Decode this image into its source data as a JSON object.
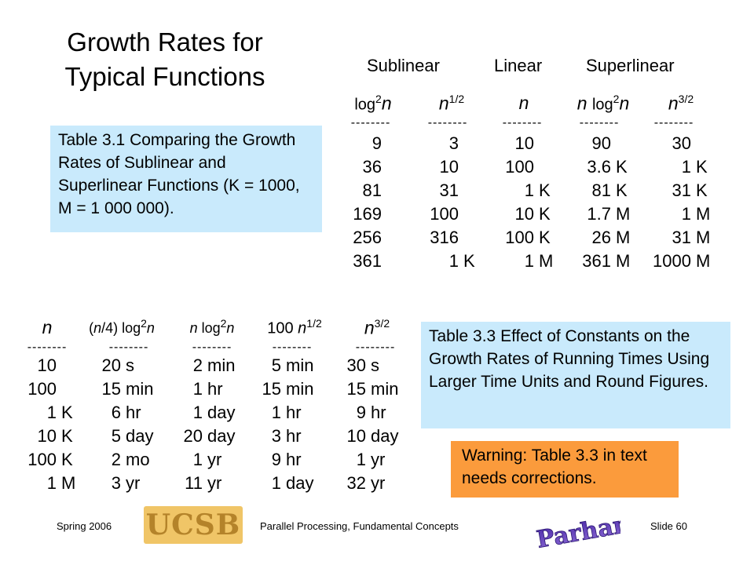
{
  "title": "Growth Rates for Typical Functions",
  "groups": {
    "sublinear": "Sublinear",
    "linear": "Linear",
    "superlinear": "Superlinear"
  },
  "table1": {
    "dash": "--------",
    "header_parts": [
      {
        "pre": "log",
        "sup": "2",
        "var": "n",
        "post": ""
      },
      {
        "pre": "",
        "var": "n",
        "sup": "1/2",
        "post": ""
      },
      {
        "pre": "",
        "var": "n",
        "sup": "",
        "post": ""
      },
      {
        "pre": "n log",
        "sup": "2",
        "var": "n",
        "post": ""
      },
      {
        "pre": "",
        "var": "n",
        "sup": "3/2",
        "post": ""
      }
    ],
    "rows": [
      [
        [
          "9",
          ""
        ],
        [
          "3",
          ""
        ],
        [
          "10",
          ""
        ],
        [
          "90",
          ""
        ],
        [
          "30",
          ""
        ]
      ],
      [
        [
          "36",
          ""
        ],
        [
          "10",
          ""
        ],
        [
          "100",
          ""
        ],
        [
          "3.6",
          "K"
        ],
        [
          "1",
          "K"
        ]
      ],
      [
        [
          "81",
          ""
        ],
        [
          "31",
          ""
        ],
        [
          "1",
          "K"
        ],
        [
          "81",
          "K"
        ],
        [
          "31",
          "K"
        ]
      ],
      [
        [
          "169",
          ""
        ],
        [
          "100",
          ""
        ],
        [
          "10",
          "K"
        ],
        [
          "1.7",
          "M"
        ],
        [
          "1",
          "M"
        ]
      ],
      [
        [
          "256",
          ""
        ],
        [
          "316",
          ""
        ],
        [
          "100",
          "K"
        ],
        [
          "26",
          "M"
        ],
        [
          "31",
          "M"
        ]
      ],
      [
        [
          "361",
          ""
        ],
        [
          "1",
          "K"
        ],
        [
          "1",
          "M"
        ],
        [
          "361",
          "M"
        ],
        [
          "1000",
          "M"
        ]
      ]
    ]
  },
  "note1": "Table 3.1    Comparing the Growth Rates of Sublinear and Superlinear Functions (K = 1000, M = 1 000 000).",
  "table3": {
    "dash": "--------",
    "rows": [
      [
        [
          "10",
          ""
        ],
        [
          "20",
          "s"
        ],
        [
          "2",
          "min"
        ],
        [
          "5",
          "min"
        ],
        [
          "30",
          "s"
        ]
      ],
      [
        [
          "100",
          ""
        ],
        [
          "15",
          "min"
        ],
        [
          "1",
          "hr"
        ],
        [
          "15",
          "min"
        ],
        [
          "15",
          "min"
        ]
      ],
      [
        [
          "1",
          "K"
        ],
        [
          "6",
          "hr"
        ],
        [
          "1",
          "day"
        ],
        [
          "1",
          "hr"
        ],
        [
          "9",
          "hr"
        ]
      ],
      [
        [
          "10",
          "K"
        ],
        [
          "5",
          "day"
        ],
        [
          "20",
          "day"
        ],
        [
          "3",
          "hr"
        ],
        [
          "10",
          "day"
        ]
      ],
      [
        [
          "100",
          "K"
        ],
        [
          "2",
          "mo"
        ],
        [
          "1",
          "yr"
        ],
        [
          "9",
          "hr"
        ],
        [
          "1",
          "yr"
        ]
      ],
      [
        [
          "1",
          "M"
        ],
        [
          "3",
          "yr"
        ],
        [
          "11",
          "yr"
        ],
        [
          "1",
          "day"
        ],
        [
          "32",
          "yr"
        ]
      ]
    ]
  },
  "note3": "Table 3.3    Effect of Constants on the Growth Rates of Running Times Using Larger Time Units and Round Figures.",
  "warning": "Warning: Table 3.3 in text needs corrections.",
  "footer": {
    "left": "Spring  2006",
    "logo_text": "UCSB",
    "center": "Parallel Processing, Fundamental Concepts",
    "right": "Slide 60",
    "signature_text": "B Parhami"
  }
}
